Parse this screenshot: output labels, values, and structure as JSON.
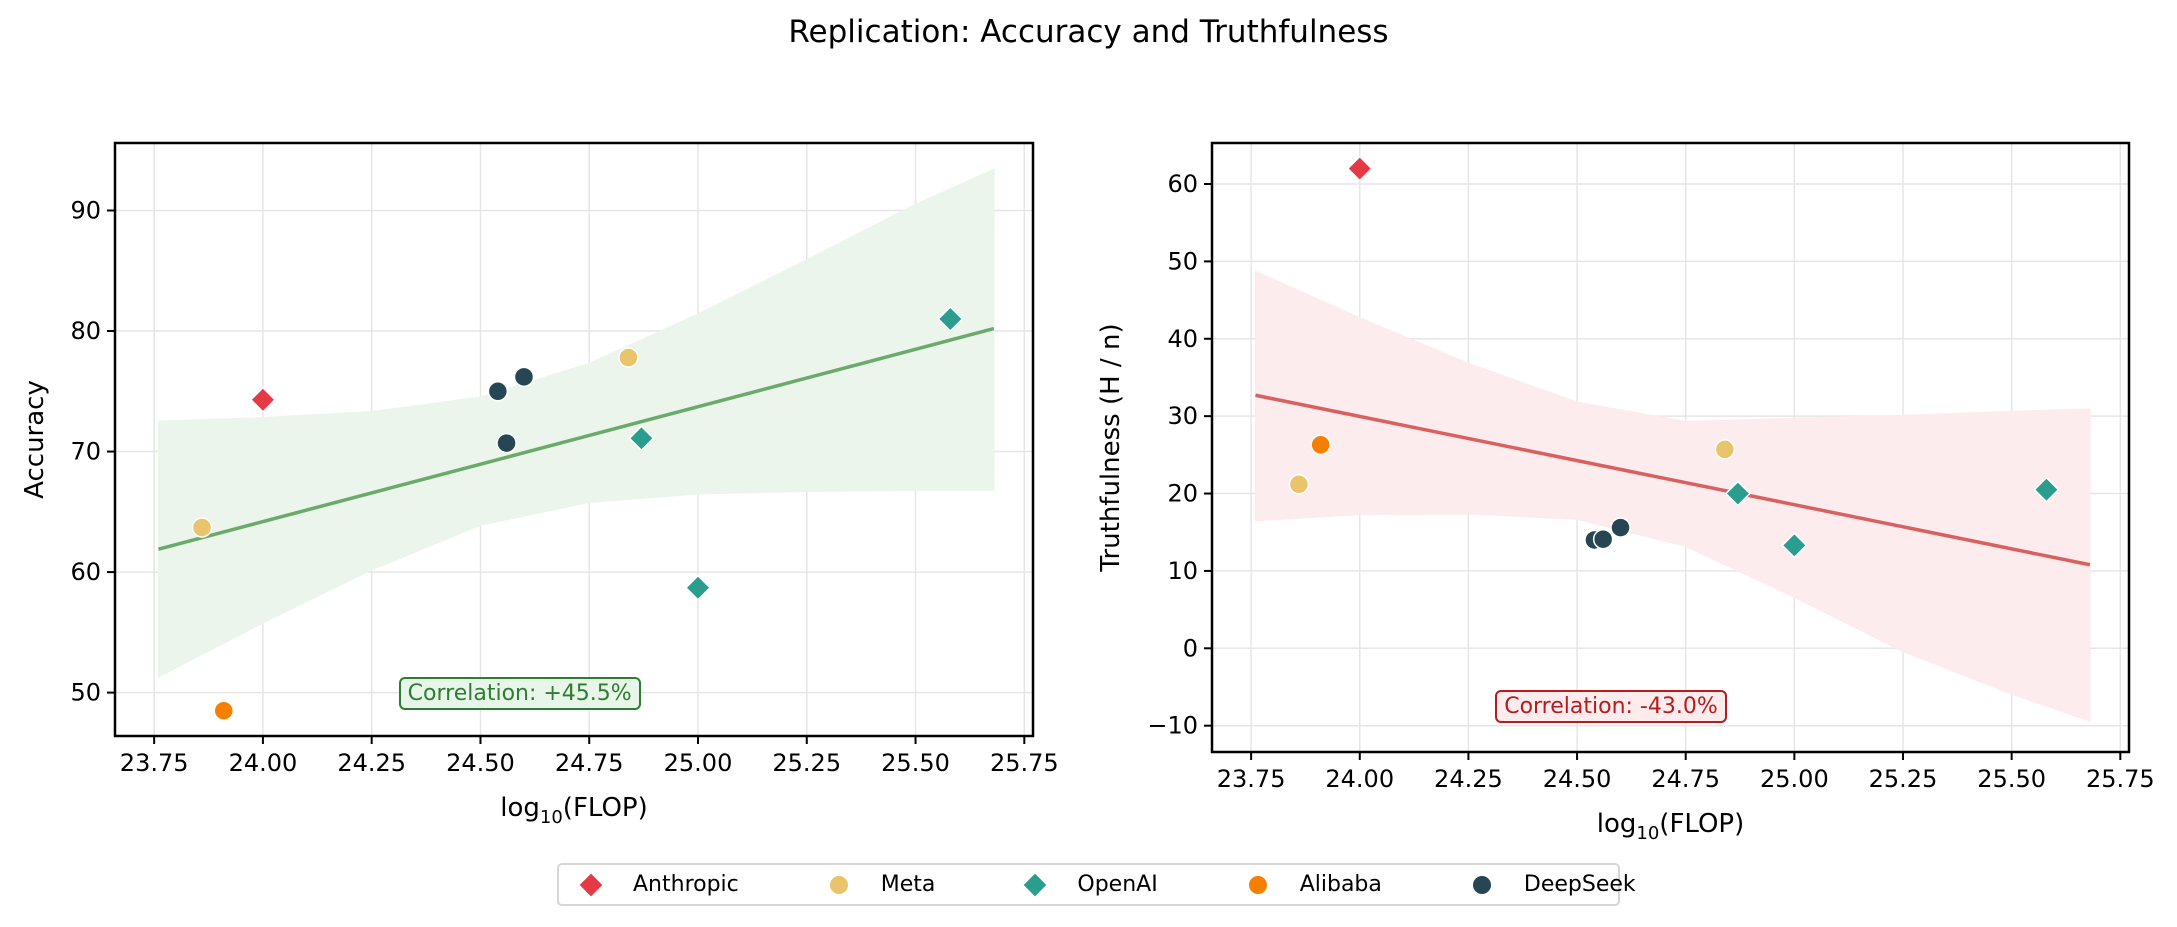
{
  "figure_title": "Replication: Accuracy and Truthfulness",
  "legend": {
    "placement": "bottom-center",
    "items": [
      {
        "label": "Anthropic",
        "marker": "diamond",
        "color": "#E63946"
      },
      {
        "label": "Meta",
        "marker": "circle",
        "color": "#E9C46A"
      },
      {
        "label": "OpenAI",
        "marker": "diamond",
        "color": "#2A9D8F"
      },
      {
        "label": "Alibaba",
        "marker": "circle",
        "color": "#F77F00"
      },
      {
        "label": "DeepSeek",
        "marker": "circle",
        "color": "#264653"
      }
    ]
  },
  "chart_data": [
    {
      "type": "scatter",
      "title": "",
      "xlabel": "log10(FLOP)",
      "ylabel": "Accuracy",
      "xlim": [
        23.66,
        25.77
      ],
      "ylim": [
        46.4,
        95.6
      ],
      "xticks": [
        "23.75",
        "24.00",
        "24.25",
        "24.50",
        "24.75",
        "25.00",
        "25.25",
        "25.50",
        "25.75"
      ],
      "xtick_values": [
        23.75,
        24.0,
        24.25,
        24.5,
        24.75,
        25.0,
        25.25,
        25.5,
        25.75
      ],
      "yticks": [
        "50",
        "60",
        "70",
        "80",
        "90"
      ],
      "ytick_values": [
        50,
        60,
        70,
        80,
        90
      ],
      "grid": true,
      "series": [
        {
          "name": "Anthropic",
          "points": [
            {
              "x": 24.0,
              "y": 74.3
            }
          ]
        },
        {
          "name": "Meta",
          "points": [
            {
              "x": 23.86,
              "y": 63.7
            },
            {
              "x": 24.84,
              "y": 77.8
            }
          ]
        },
        {
          "name": "OpenAI",
          "points": [
            {
              "x": 24.87,
              "y": 71.1
            },
            {
              "x": 25.0,
              "y": 58.7
            },
            {
              "x": 25.58,
              "y": 81.0
            }
          ]
        },
        {
          "name": "Alibaba",
          "points": [
            {
              "x": 23.91,
              "y": 48.5
            }
          ]
        },
        {
          "name": "DeepSeek",
          "points": [
            {
              "x": 24.54,
              "y": 75.0
            },
            {
              "x": 24.56,
              "y": 70.7
            },
            {
              "x": 24.6,
              "y": 76.2
            }
          ]
        }
      ],
      "trend_line": {
        "x": [
          23.76,
          25.68
        ],
        "y": [
          61.9,
          80.2
        ],
        "color": "#6AAA6A"
      },
      "confidence_band": {
        "x": [
          23.76,
          24.0,
          24.25,
          24.5,
          24.75,
          25.0,
          25.25,
          25.5,
          25.68
        ],
        "upper": [
          72.5,
          72.8,
          73.3,
          74.5,
          77.3,
          81.4,
          85.9,
          90.5,
          93.4
        ],
        "lower": [
          51.3,
          55.8,
          60.2,
          63.9,
          65.8,
          66.5,
          66.7,
          66.8,
          66.8
        ],
        "color": "#EBF5EB"
      },
      "annotation": {
        "text": "Correlation: +45.5%",
        "color": "#2E7D32",
        "background": "#E8F5E9",
        "x": 24.62,
        "y": 49.8
      }
    },
    {
      "type": "scatter",
      "title": "",
      "xlabel": "log10(FLOP)",
      "ylabel": "Truthfulness (H / n)",
      "xlim": [
        23.66,
        25.77
      ],
      "ylim": [
        -13.4,
        65.3
      ],
      "xticks": [
        "23.75",
        "24.00",
        "24.25",
        "24.50",
        "24.75",
        "25.00",
        "25.25",
        "25.50",
        "25.75"
      ],
      "xtick_values": [
        23.75,
        24.0,
        24.25,
        24.5,
        24.75,
        25.0,
        25.25,
        25.5,
        25.75
      ],
      "yticks": [
        "−10",
        "0",
        "10",
        "20",
        "30",
        "40",
        "50",
        "60"
      ],
      "ytick_values": [
        -10,
        0,
        10,
        20,
        30,
        40,
        50,
        60
      ],
      "grid": true,
      "series": [
        {
          "name": "Anthropic",
          "points": [
            {
              "x": 24.0,
              "y": 62.0
            }
          ]
        },
        {
          "name": "Meta",
          "points": [
            {
              "x": 23.86,
              "y": 21.2
            },
            {
              "x": 24.84,
              "y": 25.7
            }
          ]
        },
        {
          "name": "OpenAI",
          "points": [
            {
              "x": 24.87,
              "y": 20.0
            },
            {
              "x": 25.0,
              "y": 13.3
            },
            {
              "x": 25.58,
              "y": 20.5
            }
          ]
        },
        {
          "name": "Alibaba",
          "points": [
            {
              "x": 23.91,
              "y": 26.3
            }
          ]
        },
        {
          "name": "DeepSeek",
          "points": [
            {
              "x": 24.54,
              "y": 14.0
            },
            {
              "x": 24.56,
              "y": 14.1
            },
            {
              "x": 24.6,
              "y": 15.6
            }
          ]
        }
      ],
      "trend_line": {
        "x": [
          23.76,
          25.68
        ],
        "y": [
          32.7,
          10.8
        ],
        "color": "#D9605F"
      },
      "confidence_band": {
        "x": [
          23.76,
          24.0,
          24.25,
          24.5,
          24.75,
          25.0,
          25.25,
          25.5,
          25.68
        ],
        "upper": [
          48.7,
          42.7,
          36.8,
          31.8,
          29.3,
          29.7,
          30.1,
          30.6,
          30.9
        ],
        "lower": [
          16.5,
          17.3,
          17.4,
          16.7,
          13.2,
          6.6,
          -0.4,
          -5.9,
          -9.4
        ],
        "color": "#FDECEE"
      },
      "annotation": {
        "text": "Correlation: -43.0%",
        "color": "#B71C1C",
        "background": "#FDECEE",
        "x": 24.62,
        "y": -7.7
      }
    }
  ]
}
